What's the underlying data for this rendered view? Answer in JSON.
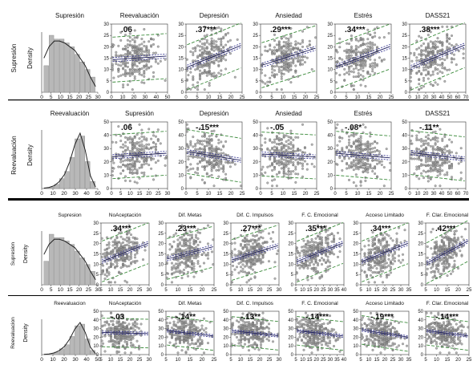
{
  "chart_data": [
    {
      "type": "scatter",
      "y_label": "Supresión",
      "density_label": "Density",
      "histogram": {
        "title": "Supresión",
        "xticks": [
          0,
          5,
          10,
          15,
          20,
          25,
          30
        ],
        "xlim": [
          0,
          30
        ],
        "bars": [
          0.07,
          0.15,
          0.14,
          0.14,
          0.13,
          0.12,
          0.1,
          0.08,
          0.06,
          0.04
        ],
        "curve": [
          0.09,
          0.12,
          0.135,
          0.135,
          0.13,
          0.12,
          0.11,
          0.09,
          0.07,
          0.04,
          0.015
        ]
      },
      "panels": [
        {
          "title": "Reevaluación",
          "r_label": ".06",
          "r": 0.06,
          "xticks": [
            0,
            10,
            20,
            30,
            40,
            50
          ],
          "xlim": [
            0,
            50
          ]
        },
        {
          "title": "Depresión",
          "r_label": ".37***",
          "r": 0.37,
          "xticks": [
            0,
            5,
            10,
            15,
            20,
            25
          ],
          "xlim": [
            0,
            25
          ]
        },
        {
          "title": "Ansiedad",
          "r_label": ".29***",
          "r": 0.29,
          "xticks": [
            0,
            5,
            10,
            15,
            20,
            25
          ],
          "xlim": [
            0,
            25
          ]
        },
        {
          "title": "Estrés",
          "r_label": ".34***",
          "r": 0.34,
          "xticks": [
            0,
            5,
            10,
            15,
            20,
            25
          ],
          "xlim": [
            0,
            25
          ]
        },
        {
          "title": "DASS21",
          "r_label": ".38***",
          "r": 0.38,
          "xticks": [
            0,
            10,
            20,
            30,
            40,
            50,
            60,
            70
          ],
          "xlim": [
            0,
            70
          ]
        }
      ],
      "yticks": [
        0,
        5,
        10,
        15,
        20,
        25,
        30
      ],
      "ylim": [
        0,
        30
      ]
    },
    {
      "type": "scatter",
      "y_label": "Reevaluación",
      "density_label": "Density",
      "histogram": {
        "title": "Reevaluación",
        "xticks": [
          0,
          10,
          20,
          30,
          40,
          50
        ],
        "xlim": [
          0,
          50
        ],
        "bars": [
          0.005,
          0.01,
          0.03,
          0.07,
          0.12,
          0.22,
          0.35,
          0.37,
          0.19,
          0.05
        ],
        "curve": [
          0.003,
          0.008,
          0.02,
          0.05,
          0.1,
          0.19,
          0.31,
          0.39,
          0.27,
          0.09,
          0.01
        ]
      },
      "panels": [
        {
          "title": "Supresión",
          "r_label": ".06",
          "r": 0.06,
          "xticks": [
            0,
            5,
            10,
            15,
            20,
            25,
            30
          ],
          "xlim": [
            0,
            30
          ]
        },
        {
          "title": "Depresión",
          "r_label": "-.15***",
          "r": -0.15,
          "xticks": [
            0,
            5,
            10,
            15,
            20,
            25
          ],
          "xlim": [
            0,
            25
          ]
        },
        {
          "title": "Ansiedad",
          "r_label": "-.05",
          "r": -0.05,
          "xticks": [
            0,
            5,
            10,
            15,
            20,
            25
          ],
          "xlim": [
            0,
            25
          ]
        },
        {
          "title": "Estrés",
          "r_label": "-.08*",
          "r": -0.08,
          "xticks": [
            0,
            5,
            10,
            15,
            20,
            25
          ],
          "xlim": [
            0,
            25
          ]
        },
        {
          "title": "DASS21",
          "r_label": "-.11**",
          "r": -0.11,
          "xticks": [
            0,
            10,
            20,
            30,
            40,
            50,
            60,
            70
          ],
          "xlim": [
            0,
            70
          ]
        }
      ],
      "yticks": [
        0,
        10,
        20,
        30,
        40,
        50
      ],
      "ylim": [
        0,
        50
      ]
    },
    {
      "type": "scatter",
      "y_label": "Supresion",
      "density_label": "Density",
      "histogram": {
        "title": "Supresion",
        "xticks": [
          0,
          5,
          10,
          15,
          20,
          25,
          30
        ],
        "xlim": [
          0,
          30
        ],
        "bars": [
          0.07,
          0.15,
          0.14,
          0.14,
          0.13,
          0.12,
          0.1,
          0.08,
          0.06,
          0.04
        ],
        "curve": [
          0.09,
          0.12,
          0.135,
          0.135,
          0.13,
          0.12,
          0.11,
          0.09,
          0.07,
          0.04,
          0.015
        ]
      },
      "panels": [
        {
          "title": "NoAceptación",
          "r_label": ".34***",
          "r": 0.34,
          "xticks": [
            5,
            10,
            15,
            20,
            25,
            30
          ],
          "xlim": [
            5,
            30
          ]
        },
        {
          "title": "Dif. Metas",
          "r_label": ".23***",
          "r": 0.23,
          "xticks": [
            5,
            10,
            15,
            20,
            25
          ],
          "xlim": [
            5,
            25
          ]
        },
        {
          "title": "Dif. C. Impulsos",
          "r_label": ".27***",
          "r": 0.27,
          "xticks": [
            5,
            10,
            15,
            20,
            25,
            30
          ],
          "xlim": [
            5,
            30
          ]
        },
        {
          "title": "F. C. Emocional",
          "r_label": ".35***",
          "r": 0.35,
          "xticks": [
            5,
            10,
            15,
            20,
            25,
            30,
            35,
            40
          ],
          "xlim": [
            5,
            40
          ]
        },
        {
          "title": "Acceso Limitado",
          "r_label": ".34***",
          "r": 0.34,
          "xticks": [
            5,
            10,
            15,
            20,
            25,
            30,
            35
          ],
          "xlim": [
            5,
            35
          ]
        },
        {
          "title": "F. Clar. Emocional",
          "r_label": ".42***",
          "r": 0.42,
          "xticks": [
            5,
            10,
            15,
            20,
            25
          ],
          "xlim": [
            5,
            25
          ]
        }
      ],
      "yticks": [
        0,
        5,
        10,
        15,
        20,
        25,
        30
      ],
      "ylim": [
        0,
        30
      ]
    },
    {
      "type": "scatter",
      "y_label": "Reevaluacion",
      "density_label": "Density",
      "histogram": {
        "title": "Reevaluacion",
        "xticks": [
          0,
          10,
          20,
          30,
          40,
          50
        ],
        "xlim": [
          0,
          50
        ],
        "bars": [
          0.005,
          0.01,
          0.03,
          0.07,
          0.12,
          0.22,
          0.35,
          0.37,
          0.19,
          0.05
        ],
        "curve": [
          0.003,
          0.008,
          0.02,
          0.05,
          0.1,
          0.19,
          0.31,
          0.39,
          0.27,
          0.09,
          0.01
        ]
      },
      "panels": [
        {
          "title": "NoAceptación",
          "r_label": "-.03",
          "r": -0.03,
          "xticks": [
            5,
            10,
            15,
            20,
            25,
            30
          ],
          "xlim": [
            5,
            30
          ]
        },
        {
          "title": "Dif. Metas",
          "r_label": "-.14**",
          "r": -0.14,
          "xticks": [
            5,
            10,
            15,
            20,
            25
          ],
          "xlim": [
            5,
            25
          ]
        },
        {
          "title": "Dif. C. Impulsos",
          "r_label": "-.13**",
          "r": -0.13,
          "xticks": [
            5,
            10,
            15,
            20,
            25,
            30
          ],
          "xlim": [
            5,
            30
          ]
        },
        {
          "title": "F. C. Emocional",
          "r_label": "-.14***",
          "r": -0.14,
          "xticks": [
            5,
            10,
            15,
            20,
            25,
            30,
            35,
            40
          ],
          "xlim": [
            5,
            40
          ]
        },
        {
          "title": "Acceso Limitado",
          "r_label": "-.19***",
          "r": -0.19,
          "xticks": [
            5,
            10,
            15,
            20,
            25,
            30,
            35
          ],
          "xlim": [
            5,
            35
          ]
        },
        {
          "title": "F. Clar. Emocional",
          "r_label": "-.14***",
          "r": -0.14,
          "xticks": [
            5,
            10,
            15,
            20,
            25
          ],
          "xlim": [
            5,
            25
          ]
        }
      ],
      "yticks": [
        0,
        10,
        20,
        30,
        40,
        50
      ],
      "ylim": [
        0,
        50
      ]
    }
  ],
  "colors": {
    "points": "#9a9a9a",
    "points_stroke": "#5a5a5a",
    "fit_line": "#1a1a5e",
    "ci_band": "#2b2b8c",
    "prediction_band": "#3a8a3a",
    "histogram_bar": "#b8b8b8",
    "density_curve": "#222222",
    "separator": "#000000"
  }
}
